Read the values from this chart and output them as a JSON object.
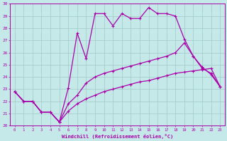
{
  "xlabel": "Windchill (Refroidissement éolien,°C)",
  "xlim": [
    -0.5,
    23.5
  ],
  "ylim": [
    20,
    30
  ],
  "xticks": [
    0,
    1,
    2,
    3,
    4,
    5,
    6,
    7,
    8,
    9,
    10,
    11,
    12,
    13,
    14,
    15,
    16,
    17,
    18,
    19,
    20,
    21,
    22,
    23
  ],
  "yticks": [
    20,
    21,
    22,
    23,
    24,
    25,
    26,
    27,
    28,
    29,
    30
  ],
  "background_color": "#c5e8e8",
  "grid_color": "#a0c8c8",
  "line_color": "#aa00aa",
  "line1_x": [
    0,
    1,
    2,
    3,
    4,
    5,
    6,
    7,
    8,
    9,
    10,
    11,
    12,
    13,
    14,
    15,
    16,
    17,
    18,
    19,
    20,
    21,
    22,
    23
  ],
  "line1_y": [
    22.8,
    22.0,
    22.0,
    21.1,
    21.1,
    20.3,
    23.1,
    27.6,
    25.5,
    29.2,
    29.2,
    28.2,
    29.2,
    28.8,
    28.8,
    29.7,
    29.2,
    29.2,
    29.0,
    27.1,
    25.7,
    24.7,
    24.3,
    23.2
  ],
  "line2_x": [
    0,
    1,
    2,
    3,
    4,
    5,
    6,
    7,
    8,
    9,
    10,
    11,
    12,
    13,
    14,
    15,
    16,
    17,
    18,
    19,
    20,
    21,
    22,
    23
  ],
  "line2_y": [
    22.8,
    22.0,
    22.0,
    21.1,
    21.1,
    20.3,
    21.8,
    22.5,
    23.5,
    24.0,
    24.3,
    24.5,
    24.7,
    24.9,
    25.1,
    25.3,
    25.5,
    25.7,
    26.0,
    26.8,
    25.7,
    24.8,
    24.2,
    23.2
  ],
  "line3_x": [
    0,
    1,
    2,
    3,
    4,
    5,
    6,
    7,
    8,
    9,
    10,
    11,
    12,
    13,
    14,
    15,
    16,
    17,
    18,
    19,
    20,
    21,
    22,
    23
  ],
  "line3_y": [
    22.8,
    22.0,
    22.0,
    21.1,
    21.1,
    20.3,
    21.2,
    21.8,
    22.2,
    22.5,
    22.8,
    23.0,
    23.2,
    23.4,
    23.6,
    23.7,
    23.9,
    24.1,
    24.3,
    24.4,
    24.5,
    24.6,
    24.7,
    23.2
  ]
}
